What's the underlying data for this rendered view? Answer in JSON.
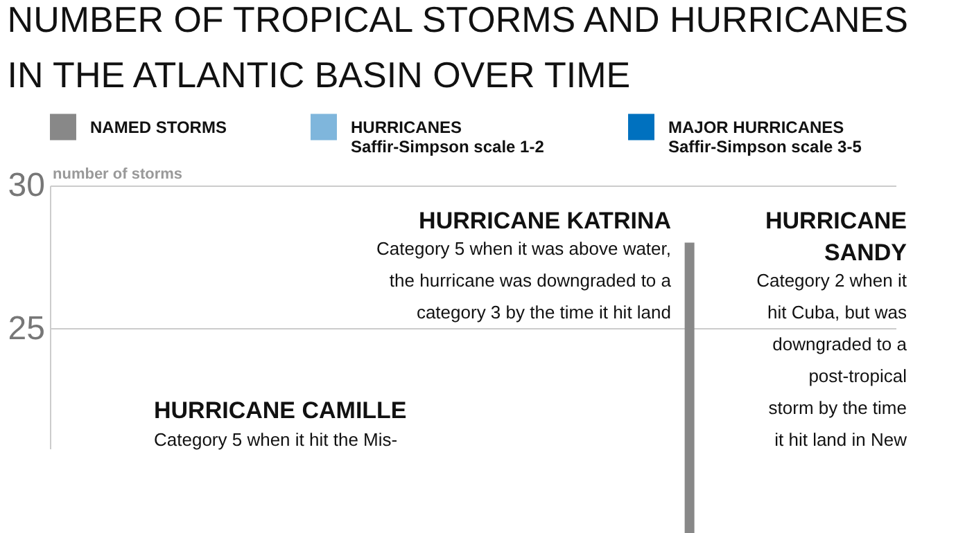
{
  "chart_data": {
    "type": "bar",
    "title": [
      "NUMBER OF TROPICAL STORMS AND HURRICANES",
      "IN THE ATLANTIC BASIN OVER TIME"
    ],
    "ylabel": "number of storms",
    "categories": [
      null,
      null,
      null,
      null,
      null,
      null,
      null,
      null,
      null,
      null,
      null,
      null,
      null,
      null,
      null,
      null,
      null,
      null,
      null,
      null,
      null,
      null,
      null,
      null,
      null,
      null,
      null,
      null,
      null,
      null,
      null,
      null,
      null,
      null,
      null,
      null,
      null,
      null,
      null,
      null,
      null,
      null,
      null,
      null,
      null,
      null,
      null,
      null,
      null,
      null,
      null,
      null,
      null,
      null,
      null,
      null,
      null,
      null,
      null,
      null,
      null,
      null,
      null,
      null,
      null,
      null,
      null,
      null,
      null,
      null,
      null,
      null,
      null,
      null,
      null,
      null,
      null,
      null,
      null,
      null
    ],
    "series": [
      {
        "name": "NAMED STORMS",
        "color": "#888888",
        "values": [
          null,
          null,
          null,
          null,
          null,
          null,
          null,
          null,
          null,
          null,
          null,
          null,
          null,
          null,
          null,
          null,
          null,
          null,
          null,
          null,
          null,
          null,
          null,
          null,
          null,
          null,
          null,
          null,
          null,
          null,
          null,
          null,
          null,
          null,
          null,
          null,
          null,
          null,
          null,
          null,
          null,
          null,
          null,
          null,
          null,
          null,
          null,
          null,
          null,
          null,
          null,
          null,
          null,
          null,
          null,
          null,
          null,
          null,
          null,
          null,
          28,
          null,
          null,
          null,
          null,
          null,
          null,
          null,
          null,
          null,
          null,
          null,
          null,
          null,
          null,
          null,
          null,
          null,
          null,
          null
        ]
      },
      {
        "name": "HURRICANES",
        "color": "#7fb6dc",
        "values": [
          null,
          null,
          null,
          null,
          null,
          null,
          null,
          null,
          null,
          null,
          null,
          null,
          null,
          null,
          null,
          null,
          null,
          null,
          null,
          null,
          null,
          null,
          null,
          null,
          null,
          null,
          null,
          null,
          null,
          null,
          null,
          null,
          null,
          null,
          null,
          null,
          null,
          null,
          null,
          null,
          null,
          null,
          null,
          null,
          null,
          null,
          null,
          null,
          null,
          null,
          null,
          null,
          null,
          null,
          null,
          null,
          null,
          null,
          null,
          null,
          null,
          null,
          null,
          null,
          null,
          null,
          null,
          null,
          null,
          null,
          null,
          null,
          null,
          null,
          null,
          null,
          null,
          null,
          null,
          null
        ]
      },
      {
        "name": "MAJOR HURRICANES",
        "color": "#0071bf",
        "values": [
          null,
          null,
          null,
          null,
          null,
          null,
          null,
          null,
          null,
          null,
          null,
          null,
          null,
          null,
          null,
          null,
          null,
          null,
          null,
          null,
          null,
          null,
          null,
          null,
          null,
          null,
          null,
          null,
          null,
          null,
          null,
          null,
          null,
          null,
          null,
          null,
          null,
          null,
          null,
          null,
          null,
          null,
          null,
          null,
          null,
          null,
          null,
          null,
          null,
          null,
          null,
          null,
          null,
          null,
          null,
          null,
          null,
          null,
          null,
          null,
          null,
          null,
          null,
          null,
          null,
          null,
          null,
          null,
          null,
          null,
          null,
          null,
          null,
          null,
          null,
          null,
          null,
          null,
          null,
          null
        ]
      }
    ],
    "ylim": [
      20.8,
      30
    ],
    "yticks": [
      25,
      30
    ],
    "grid": "y",
    "legend": "top",
    "annotations": [
      "Saffir-Simpson scale 1-2",
      "Saffir-Simpson scale 3-5",
      "HURRICANE KATRINA",
      "Category 5 when it was above water,\nthe hurricane was downgraded to a\ncategory 3 by the time it hit land",
      "HURRICANE\nSANDY",
      "Category 2 when it\nhit Cuba, but was\ndowngraded to a\npost-tropical\nstorm by the time\nit hit land in New",
      "HURRICANE CAMILLE",
      "Category 5 when it hit the Mis-"
    ]
  }
}
